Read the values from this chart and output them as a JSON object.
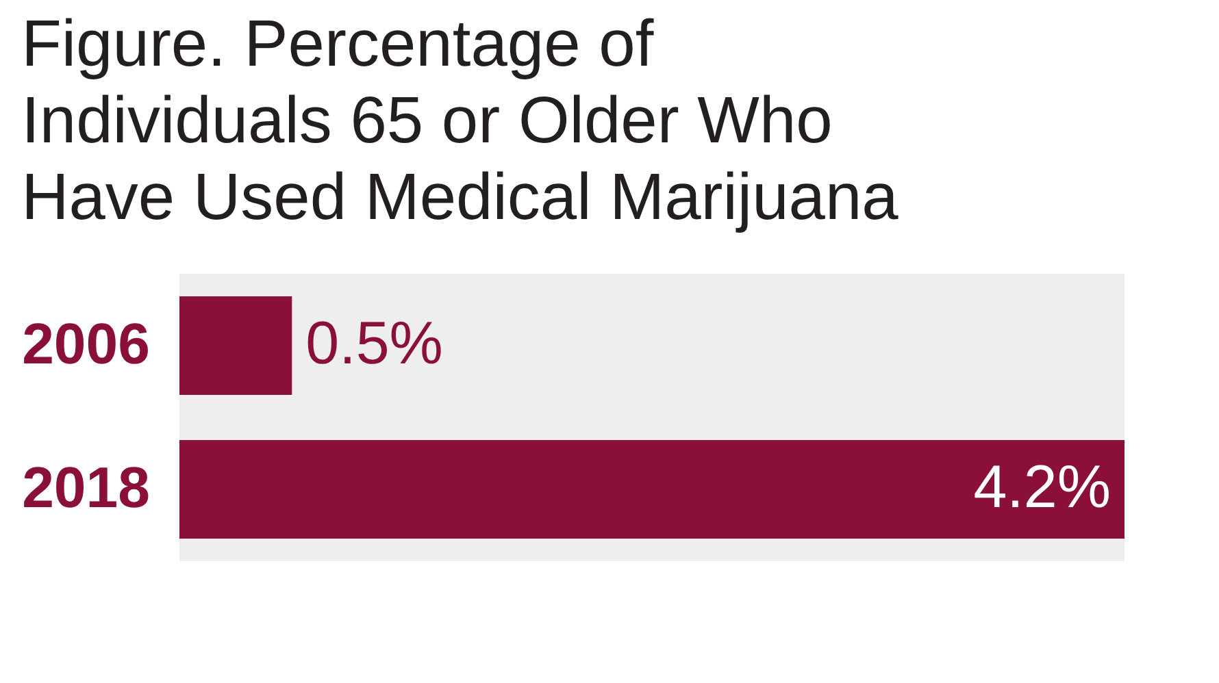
{
  "chart_data": {
    "type": "bar",
    "orientation": "horizontal",
    "title": "Figure. Percentage of Individuals 65 or Older Who Have Used Medical Marijuana",
    "categories": [
      "2006",
      "2018"
    ],
    "values": [
      0.5,
      4.2
    ],
    "value_labels": [
      "0.5%",
      "4.2%"
    ],
    "color": "#8b1038",
    "grid": false
  }
}
